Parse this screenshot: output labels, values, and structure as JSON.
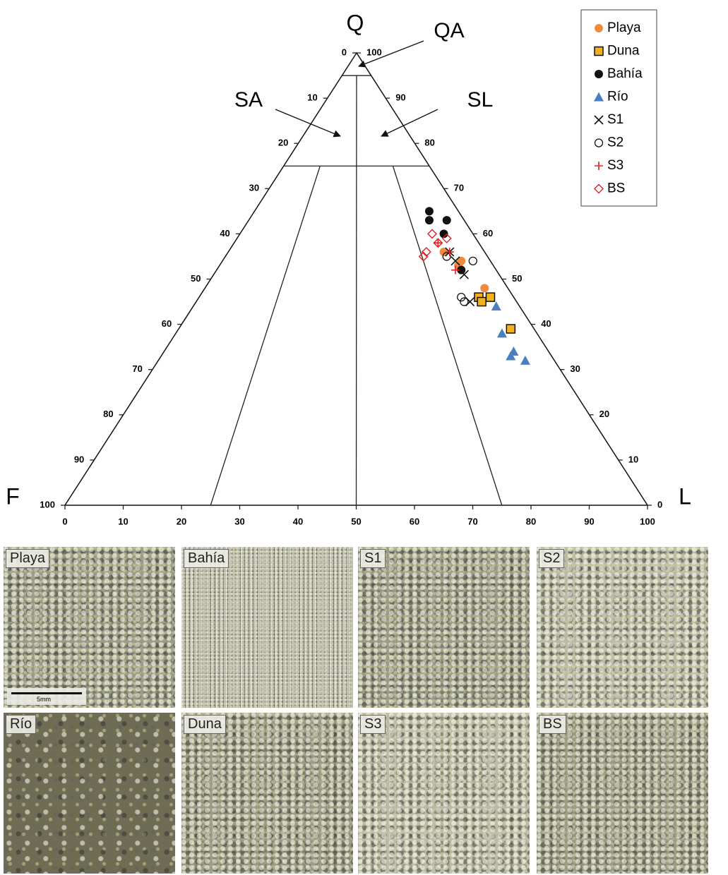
{
  "chart_data": {
    "type": "ternary",
    "vertex_labels": {
      "top": "Q",
      "left": "F",
      "right": "L"
    },
    "region_labels": [
      "QA",
      "SA",
      "SL"
    ],
    "fticks": [
      0,
      10,
      20,
      30,
      40,
      50,
      60,
      70,
      80,
      90,
      100
    ],
    "qticks": [
      0,
      10,
      20,
      30,
      40,
      50,
      60,
      70,
      80,
      90,
      100
    ],
    "lticks": [
      0,
      10,
      20,
      30,
      40,
      50,
      60,
      70,
      80,
      90,
      100
    ],
    "q_lines": [
      95,
      75
    ],
    "lf_lines": [
      {
        "l": 25,
        "q": 75
      },
      {
        "l": 50,
        "q": 95
      },
      {
        "l": 75,
        "q": 75
      }
    ],
    "legend": "upper right",
    "series": [
      {
        "name": "Playa",
        "color": "#f08a3c",
        "marker": "circle",
        "q": [
          56,
          54,
          53,
          48
        ],
        "l": [
          37,
          41,
          41,
          48
        ]
      },
      {
        "name": "Duna",
        "color": "#f2b21b",
        "marker": "square",
        "q": [
          46,
          45,
          46,
          39
        ],
        "l": [
          48,
          49,
          50,
          57
        ]
      },
      {
        "name": "Bahía",
        "color": "#111111",
        "marker": "circle",
        "q": [
          65,
          63,
          63,
          60,
          52
        ],
        "l": [
          30,
          31,
          34,
          35,
          42
        ]
      },
      {
        "name": "Río",
        "color": "#4a7fc1",
        "marker": "triangle",
        "q": [
          44,
          38,
          34,
          33,
          32
        ],
        "l": [
          52,
          56,
          60,
          60,
          63
        ]
      },
      {
        "name": "S1",
        "color": "#111111",
        "marker": "x",
        "q": [
          56,
          54,
          51,
          45
        ],
        "l": [
          38,
          40,
          43,
          47
        ]
      },
      {
        "name": "S2",
        "color": "#111111",
        "marker": "open-circle",
        "q": [
          55,
          54,
          46,
          45
        ],
        "l": [
          38,
          43,
          45,
          46
        ]
      },
      {
        "name": "S3",
        "color": "#e02020",
        "marker": "plus",
        "q": [
          58,
          56,
          52
        ],
        "l": [
          35,
          38,
          41
        ]
      },
      {
        "name": "BS",
        "color": "#e02020",
        "marker": "open-diamond",
        "q": [
          60,
          58,
          59,
          56,
          55
        ],
        "l": [
          33,
          35,
          36,
          34,
          34
        ]
      }
    ]
  },
  "panels": [
    "Playa",
    "Bahía",
    "S1",
    "S2",
    "Río",
    "Duna",
    "S3",
    "BS"
  ],
  "scale_bar": "5mm"
}
